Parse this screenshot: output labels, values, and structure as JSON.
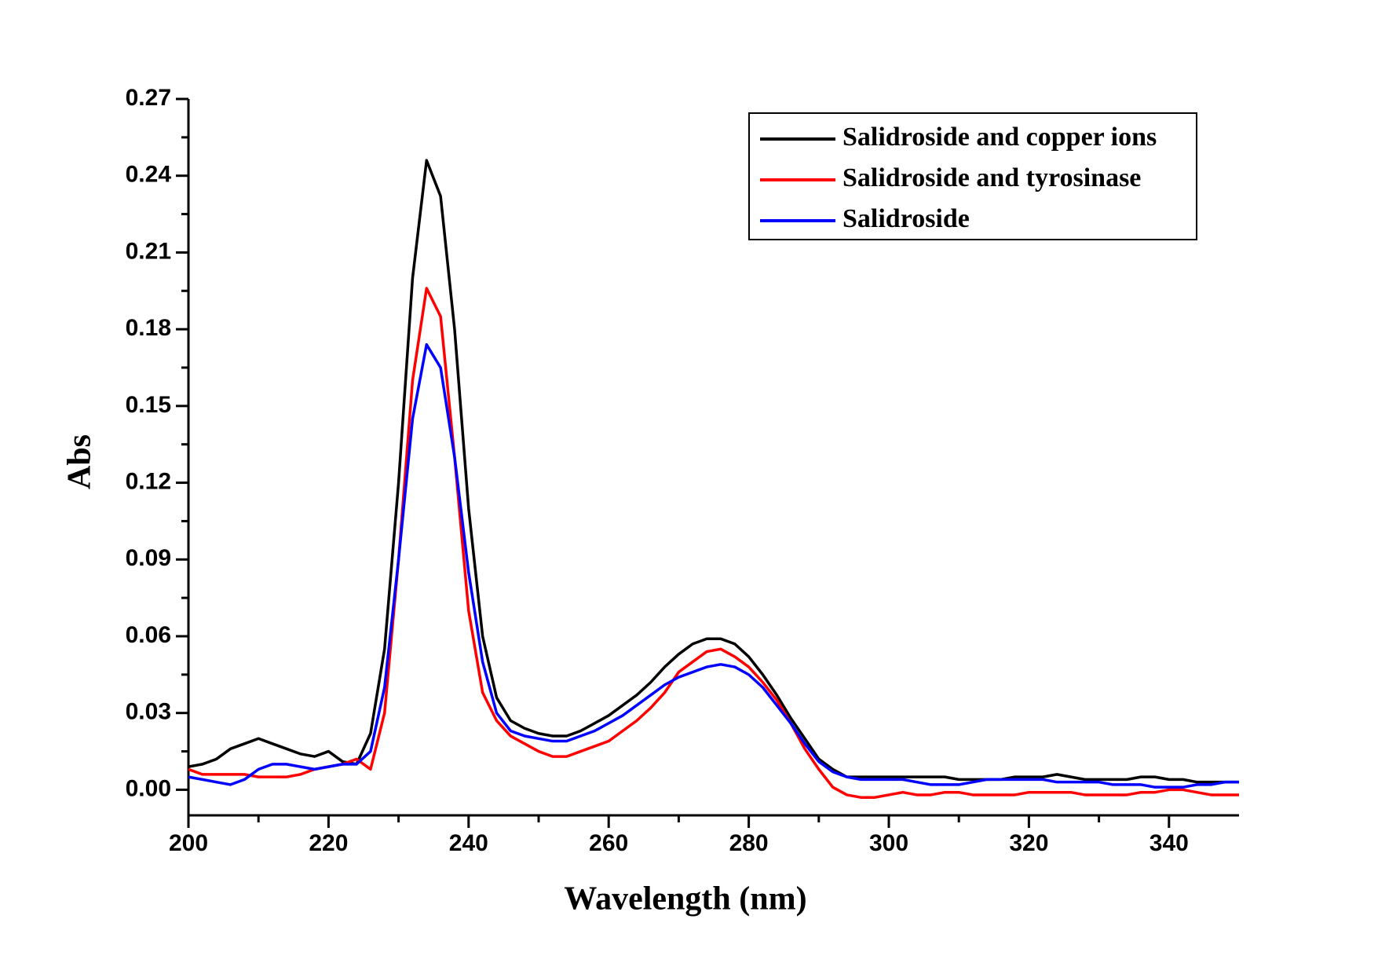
{
  "chart_data": {
    "type": "line",
    "x_label": "Wavelength (nm)",
    "y_label": "Abs",
    "xlim": [
      200,
      350
    ],
    "ylim": [
      -0.01,
      0.27
    ],
    "xticks": [
      200,
      220,
      240,
      260,
      280,
      300,
      320,
      340
    ],
    "yticks": [
      {
        "value": 0,
        "label": "0.00"
      },
      0.03,
      0.06,
      0.09,
      0.12,
      0.15,
      0.18,
      0.21,
      0.24,
      0.27
    ],
    "legend": "upper right",
    "x": [
      200,
      202,
      204,
      206,
      208,
      210,
      212,
      214,
      216,
      218,
      220,
      222,
      224,
      226,
      228,
      230,
      232,
      234,
      236,
      238,
      240,
      242,
      244,
      246,
      248,
      250,
      252,
      254,
      256,
      258,
      260,
      262,
      264,
      266,
      268,
      270,
      272,
      274,
      276,
      278,
      280,
      282,
      284,
      286,
      288,
      290,
      292,
      294,
      296,
      298,
      300,
      302,
      304,
      306,
      308,
      310,
      312,
      314,
      316,
      318,
      320,
      322,
      324,
      326,
      328,
      330,
      332,
      334,
      336,
      338,
      340,
      342,
      344,
      346,
      348,
      350
    ],
    "series": [
      {
        "name": "Salidroside and copper ions",
        "color": "#000000",
        "values": [
          0.009,
          0.01,
          0.012,
          0.016,
          0.018,
          0.02,
          0.018,
          0.016,
          0.014,
          0.013,
          0.015,
          0.011,
          0.01,
          0.022,
          0.055,
          0.12,
          0.2,
          0.246,
          0.232,
          0.18,
          0.11,
          0.06,
          0.036,
          0.027,
          0.024,
          0.022,
          0.021,
          0.021,
          0.023,
          0.026,
          0.029,
          0.033,
          0.037,
          0.042,
          0.048,
          0.053,
          0.057,
          0.059,
          0.059,
          0.057,
          0.052,
          0.045,
          0.037,
          0.028,
          0.02,
          0.012,
          0.008,
          0.005,
          0.005,
          0.005,
          0.005,
          0.005,
          0.005,
          0.005,
          0.005,
          0.004,
          0.004,
          0.004,
          0.004,
          0.005,
          0.005,
          0.005,
          0.006,
          0.005,
          0.004,
          0.004,
          0.004,
          0.004,
          0.005,
          0.005,
          0.004,
          0.004,
          0.003,
          0.003,
          0.003,
          0.003
        ]
      },
      {
        "name": "Salidroside and tyrosinase",
        "color": "#ff0000",
        "values": [
          0.008,
          0.006,
          0.006,
          0.006,
          0.006,
          0.005,
          0.005,
          0.005,
          0.006,
          0.008,
          0.009,
          0.01,
          0.012,
          0.008,
          0.03,
          0.09,
          0.16,
          0.196,
          0.185,
          0.13,
          0.07,
          0.038,
          0.027,
          0.021,
          0.018,
          0.015,
          0.013,
          0.013,
          0.015,
          0.017,
          0.019,
          0.023,
          0.027,
          0.032,
          0.038,
          0.046,
          0.05,
          0.054,
          0.055,
          0.052,
          0.048,
          0.042,
          0.035,
          0.026,
          0.016,
          0.008,
          0.001,
          -0.002,
          -0.003,
          -0.003,
          -0.002,
          -0.001,
          -0.002,
          -0.002,
          -0.001,
          -0.001,
          -0.002,
          -0.002,
          -0.002,
          -0.002,
          -0.001,
          -0.001,
          -0.001,
          -0.001,
          -0.002,
          -0.002,
          -0.002,
          -0.002,
          -0.001,
          -0.001,
          0,
          0,
          -0.001,
          -0.002,
          -0.002,
          -0.002
        ]
      },
      {
        "name": "Salidroside",
        "color": "#0000ff",
        "values": [
          0.005,
          0.004,
          0.003,
          0.002,
          0.004,
          0.008,
          0.01,
          0.01,
          0.009,
          0.008,
          0.009,
          0.01,
          0.01,
          0.015,
          0.04,
          0.09,
          0.145,
          0.174,
          0.165,
          0.13,
          0.085,
          0.05,
          0.03,
          0.023,
          0.021,
          0.02,
          0.019,
          0.019,
          0.021,
          0.023,
          0.026,
          0.029,
          0.033,
          0.037,
          0.041,
          0.044,
          0.046,
          0.048,
          0.049,
          0.048,
          0.045,
          0.04,
          0.033,
          0.026,
          0.018,
          0.011,
          0.007,
          0.005,
          0.004,
          0.004,
          0.004,
          0.004,
          0.003,
          0.002,
          0.002,
          0.002,
          0.003,
          0.004,
          0.004,
          0.004,
          0.004,
          0.004,
          0.003,
          0.003,
          0.003,
          0.003,
          0.002,
          0.002,
          0.002,
          0.001,
          0.001,
          0.001,
          0.002,
          0.002,
          0.003,
          0.003
        ]
      }
    ]
  }
}
